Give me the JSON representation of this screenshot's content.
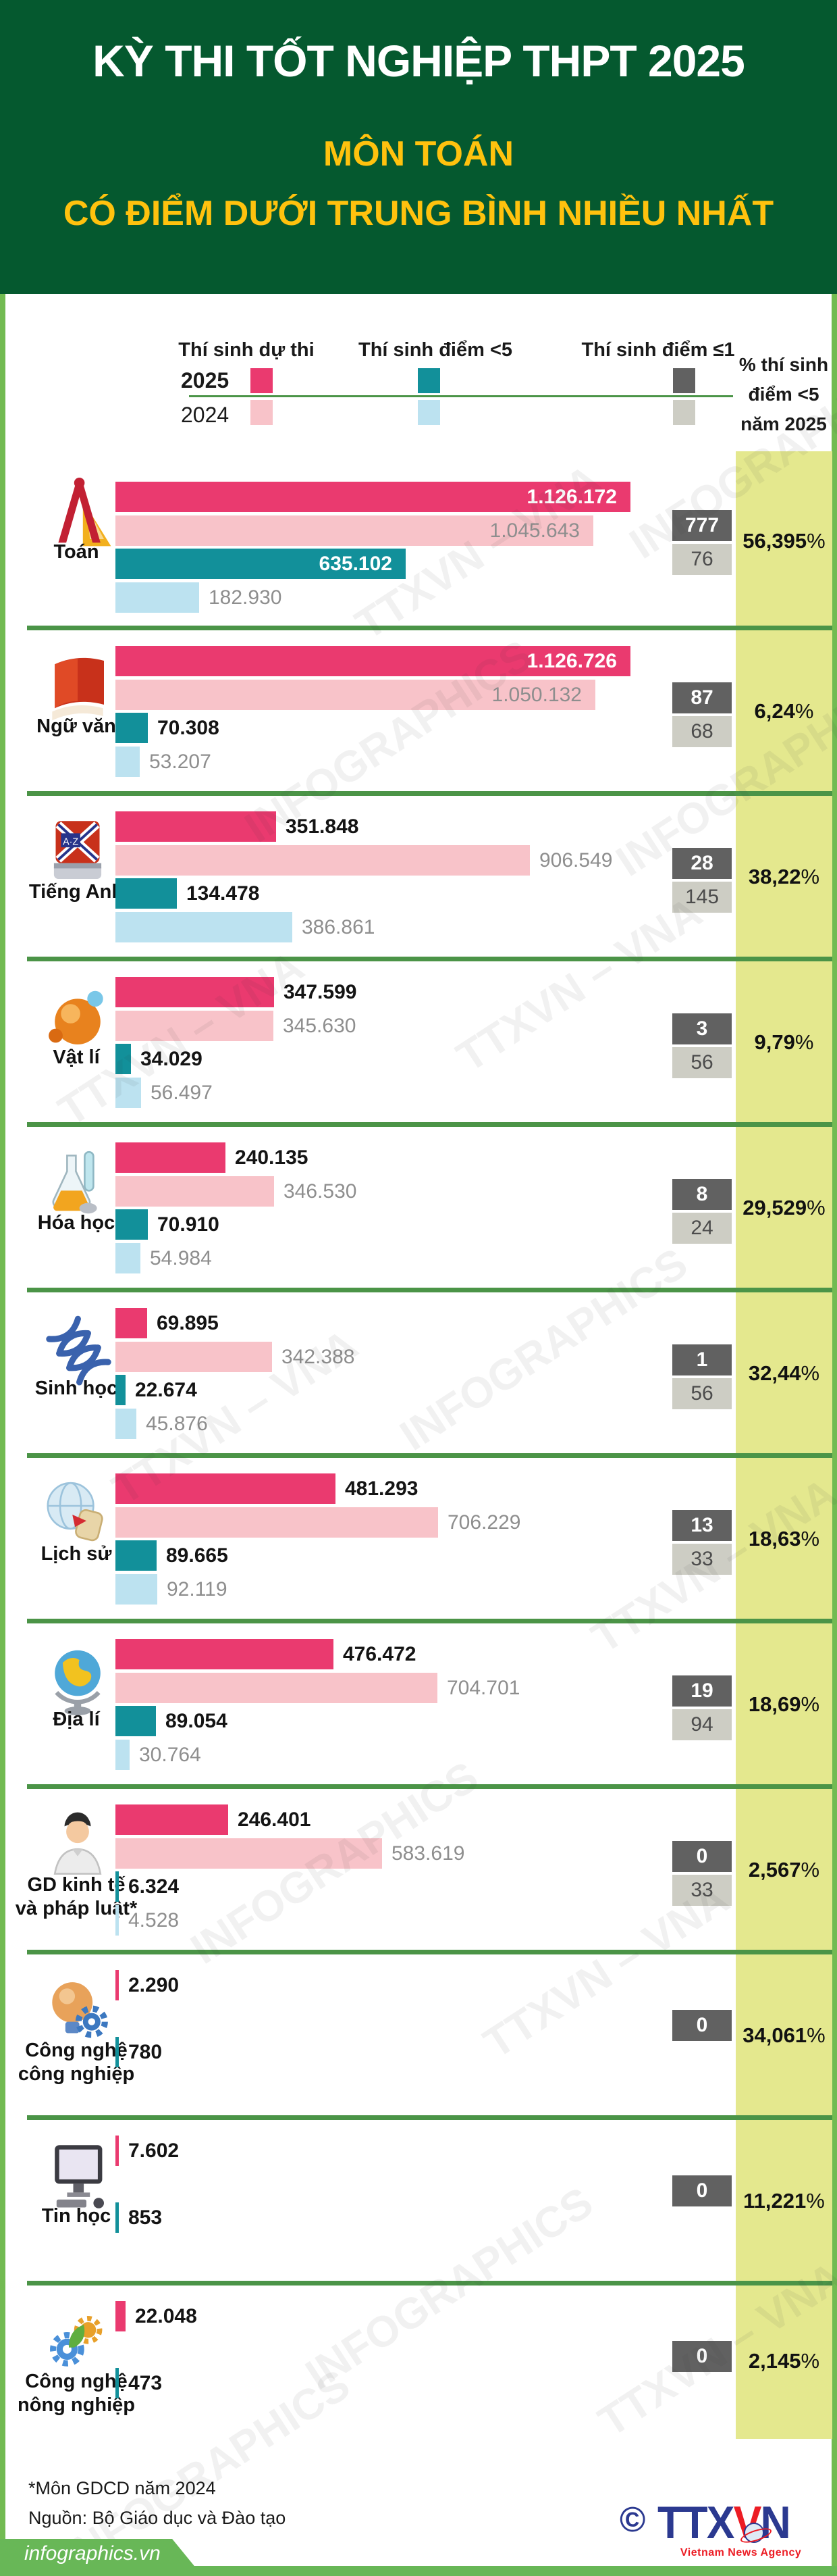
{
  "header": {
    "title": "KỲ THI TỐT NGHIỆP THPT 2025",
    "subtitle1": "MÔN TOÁN",
    "subtitle2": "CÓ ĐIỂM DƯỚI TRUNG BÌNH NHIỀU NHẤT"
  },
  "legend": {
    "years": [
      "2025",
      "2024"
    ],
    "series": [
      "Thí sinh dự thi",
      "Thí sinh điểm <5",
      "Thí sinh điểm ≤1"
    ],
    "percent_header_lines": [
      "% thí sinh",
      "điểm <5",
      "năm 2025"
    ],
    "percent_suffix": "%"
  },
  "colors": {
    "header_bg": "#05592F",
    "title": "#FFFFFF",
    "subtitle": "#FFC20E",
    "frame": "#72BB52",
    "separator": "#4B9447",
    "pink_2025": "#EA3A6F",
    "pink_2024": "#F8C3C9",
    "teal_2025": "#12909A",
    "blue_2024": "#BCE2F0",
    "gray_2025": "#616161",
    "gray_2024": "#CDCDC4",
    "percent_col_bg": "#E4E88E",
    "footer_green": "#68B757",
    "logo_blue": "#2B3990",
    "logo_red": "#EC1C24"
  },
  "watermark": [
    "TTXVN – VNA",
    "INFOGRAPHICS"
  ],
  "chart_data": {
    "type": "bar",
    "title": "KỲ THI TỐT NGHIỆP THPT 2025 — MÔN TOÁN CÓ ĐIỂM DƯỚI TRUNG BÌNH NHIỀU NHẤT",
    "series_labels": [
      "Thí sinh dự thi 2025",
      "Thí sinh dự thi 2024",
      "Thí sinh điểm <5 2025",
      "Thí sinh điểm <5 2024",
      "Thí sinh điểm ≤1 2025",
      "Thí sinh điểm ≤1 2024",
      "% thí sinh điểm <5 năm 2025"
    ],
    "max_value": 1126726,
    "subjects": [
      {
        "name": "Toán",
        "name_lines": [
          "Toán"
        ],
        "icon": "ruler-compass-icon",
        "bars": [
          {
            "series": "du_thi_2025",
            "slot": 0,
            "value": 1126172,
            "label": "1.126.172",
            "inside": true
          },
          {
            "series": "du_thi_2024",
            "slot": 1,
            "value": 1045643,
            "label": "1.045.643",
            "inside": true
          },
          {
            "series": "diem_duoi5_2025",
            "slot": 2,
            "value": 635102,
            "label": "635.102",
            "inside": true
          },
          {
            "series": "diem_duoi5_2024",
            "slot": 3,
            "value": 182930,
            "label": "182.930",
            "inside": false
          }
        ],
        "diem1_2025": "777",
        "diem1_2024": "76",
        "percent": "56,395"
      },
      {
        "name": "Ngữ văn",
        "name_lines": [
          "Ngữ văn"
        ],
        "icon": "book-icon",
        "bars": [
          {
            "series": "du_thi_2025",
            "slot": 0,
            "value": 1126726,
            "label": "1.126.726",
            "inside": true
          },
          {
            "series": "du_thi_2024",
            "slot": 1,
            "value": 1050132,
            "label": "1.050.132",
            "inside": true
          },
          {
            "series": "diem_duoi5_2025",
            "slot": 2,
            "value": 70308,
            "label": "70.308",
            "inside": false
          },
          {
            "series": "diem_duoi5_2024",
            "slot": 3,
            "value": 53207,
            "label": "53.207",
            "inside": false
          }
        ],
        "diem1_2025": "87",
        "diem1_2024": "68",
        "percent": "6,24"
      },
      {
        "name": "Tiếng Anh",
        "name_lines": [
          "Tiếng Anh"
        ],
        "icon": "english-dictionary-icon",
        "bars": [
          {
            "series": "du_thi_2025",
            "slot": 0,
            "value": 351848,
            "label": "351.848",
            "inside": false
          },
          {
            "series": "du_thi_2024",
            "slot": 1,
            "value": 906549,
            "label": "906.549",
            "inside": false
          },
          {
            "series": "diem_duoi5_2025",
            "slot": 2,
            "value": 134478,
            "label": "134.478",
            "inside": false
          },
          {
            "series": "diem_duoi5_2024",
            "slot": 3,
            "value": 386861,
            "label": "386.861",
            "inside": false
          }
        ],
        "diem1_2025": "28",
        "diem1_2024": "145",
        "percent": "38,22"
      },
      {
        "name": "Vật lí",
        "name_lines": [
          "Vật lí"
        ],
        "icon": "atom-icon",
        "bars": [
          {
            "series": "du_thi_2025",
            "slot": 0,
            "value": 347599,
            "label": "347.599",
            "inside": false
          },
          {
            "series": "du_thi_2024",
            "slot": 1,
            "value": 345630,
            "label": "345.630",
            "inside": false
          },
          {
            "series": "diem_duoi5_2025",
            "slot": 2,
            "value": 34029,
            "label": "34.029",
            "inside": false
          },
          {
            "series": "diem_duoi5_2024",
            "slot": 3,
            "value": 56497,
            "label": "56.497",
            "inside": false
          }
        ],
        "diem1_2025": "3",
        "diem1_2024": "56",
        "percent": "9,79"
      },
      {
        "name": "Hóa học",
        "name_lines": [
          "Hóa học"
        ],
        "icon": "flask-icon",
        "bars": [
          {
            "series": "du_thi_2025",
            "slot": 0,
            "value": 240135,
            "label": "240.135",
            "inside": false
          },
          {
            "series": "du_thi_2024",
            "slot": 1,
            "value": 346530,
            "label": "346.530",
            "inside": false
          },
          {
            "series": "diem_duoi5_2025",
            "slot": 2,
            "value": 70910,
            "label": "70.910",
            "inside": false
          },
          {
            "series": "diem_duoi5_2024",
            "slot": 3,
            "value": 54984,
            "label": "54.984",
            "inside": false
          }
        ],
        "diem1_2025": "8",
        "diem1_2024": "24",
        "percent": "29,529"
      },
      {
        "name": "Sinh học",
        "name_lines": [
          "Sinh học"
        ],
        "icon": "dna-icon",
        "bars": [
          {
            "series": "du_thi_2025",
            "slot": 0,
            "value": 69895,
            "label": "69.895",
            "inside": false
          },
          {
            "series": "du_thi_2024",
            "slot": 1,
            "value": 342388,
            "label": "342.388",
            "inside": false
          },
          {
            "series": "diem_duoi5_2025",
            "slot": 2,
            "value": 22674,
            "label": "22.674",
            "inside": false
          },
          {
            "series": "diem_duoi5_2024",
            "slot": 3,
            "value": 45876,
            "label": "45.876",
            "inside": false
          }
        ],
        "diem1_2025": "1",
        "diem1_2024": "56",
        "percent": "32,44"
      },
      {
        "name": "Lịch sử",
        "name_lines": [
          "Lịch sử"
        ],
        "icon": "globe-scroll-icon",
        "bars": [
          {
            "series": "du_thi_2025",
            "slot": 0,
            "value": 481293,
            "label": "481.293",
            "inside": false
          },
          {
            "series": "du_thi_2024",
            "slot": 1,
            "value": 706229,
            "label": "706.229",
            "inside": false
          },
          {
            "series": "diem_duoi5_2025",
            "slot": 2,
            "value": 89665,
            "label": "89.665",
            "inside": false
          },
          {
            "series": "diem_duoi5_2024",
            "slot": 3,
            "value": 92119,
            "label": "92.119",
            "inside": false
          }
        ],
        "diem1_2025": "13",
        "diem1_2024": "33",
        "percent": "18,63"
      },
      {
        "name": "Địa lí",
        "name_lines": [
          "Địa lí"
        ],
        "icon": "globe-icon",
        "bars": [
          {
            "series": "du_thi_2025",
            "slot": 0,
            "value": 476472,
            "label": "476.472",
            "inside": false
          },
          {
            "series": "du_thi_2024",
            "slot": 1,
            "value": 704701,
            "label": "704.701",
            "inside": false
          },
          {
            "series": "diem_duoi5_2025",
            "slot": 2,
            "value": 89054,
            "label": "89.054",
            "inside": false
          },
          {
            "series": "diem_duoi5_2024",
            "slot": 3,
            "value": 30764,
            "label": "30.764",
            "inside": false
          }
        ],
        "diem1_2025": "19",
        "diem1_2024": "94",
        "percent": "18,69"
      },
      {
        "name": "GD kinh tế và pháp luật*",
        "name_lines": [
          "GD kinh tế",
          "và pháp luật*"
        ],
        "icon": "person-icon",
        "bars": [
          {
            "series": "du_thi_2025",
            "slot": 0,
            "value": 246401,
            "label": "246.401",
            "inside": false
          },
          {
            "series": "du_thi_2024",
            "slot": 1,
            "value": 583619,
            "label": "583.619",
            "inside": false
          },
          {
            "series": "diem_duoi5_2025",
            "slot": 2,
            "value": 6324,
            "label": "6.324",
            "inside": false
          },
          {
            "series": "diem_duoi5_2024",
            "slot": 3,
            "value": 4528,
            "label": "4.528",
            "inside": false
          }
        ],
        "diem1_2025": "0",
        "diem1_2024": "33",
        "percent": "2,567"
      },
      {
        "name": "Công nghệ công nghiệp",
        "name_lines": [
          "Công nghệ",
          "công nghiệp"
        ],
        "icon": "bulb-gear-icon",
        "bars": [
          {
            "series": "du_thi_2025",
            "slot": 0,
            "value": 2290,
            "label": "2.290",
            "inside": false
          },
          {
            "series": "diem_duoi5_2025",
            "slot": 2,
            "value": 780,
            "label": "780",
            "inside": false
          }
        ],
        "diem1_2025": "0",
        "diem1_2024": null,
        "percent": "34,061"
      },
      {
        "name": "Tin học",
        "name_lines": [
          "Tin học"
        ],
        "icon": "computer-icon",
        "bars": [
          {
            "series": "du_thi_2025",
            "slot": 0,
            "value": 7602,
            "label": "7.602",
            "inside": false
          },
          {
            "series": "diem_duoi5_2025",
            "slot": 2,
            "value": 853,
            "label": "853",
            "inside": false
          }
        ],
        "diem1_2025": "0",
        "diem1_2024": null,
        "percent": "11,221"
      },
      {
        "name": "Công nghệ nông nghiệp",
        "name_lines": [
          "Công nghệ",
          "nông nghiệp"
        ],
        "icon": "gear-leaf-icon",
        "bars": [
          {
            "series": "du_thi_2025",
            "slot": 0,
            "value": 22048,
            "label": "22.048",
            "inside": false
          },
          {
            "series": "diem_duoi5_2025",
            "slot": 2,
            "value": 473,
            "label": "473",
            "inside": false
          }
        ],
        "diem1_2025": "0",
        "diem1_2024": null,
        "percent": "2,145"
      }
    ]
  },
  "footer": {
    "note1": "*Môn GDCD năm 2024",
    "note2": "Nguồn: Bộ Giáo dục và Đào tạo",
    "site": "infographics.vn",
    "copyright": "©",
    "logo": {
      "part1": "TTX",
      "part2": "V",
      "part3": "N",
      "tagline": "Vietnam News Agency"
    }
  }
}
